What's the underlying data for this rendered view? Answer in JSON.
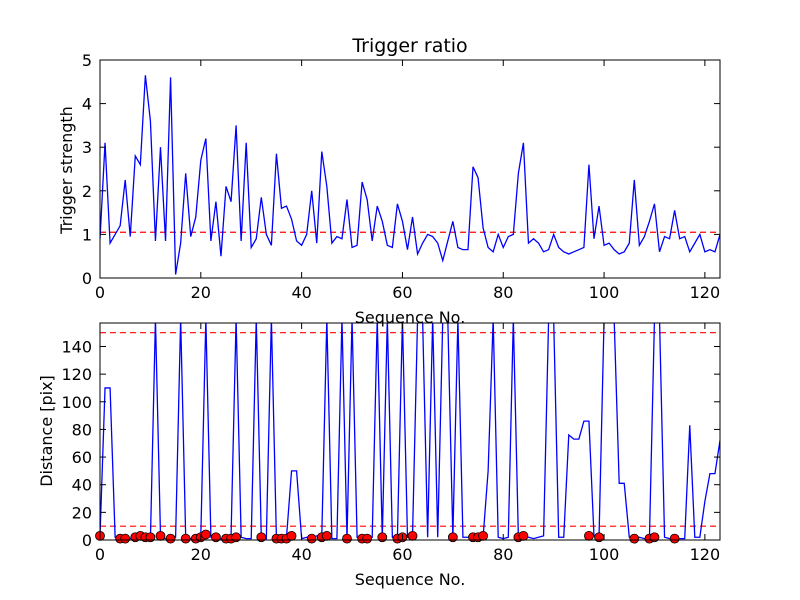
{
  "figure": {
    "title": "Trigger ratio"
  },
  "colors": {
    "line": "#0000ff",
    "threshold": "#ff0000",
    "marker": "#ff0000"
  },
  "chart_data": [
    {
      "type": "line",
      "title": "Trigger ratio",
      "xlabel": "Sequence No.",
      "ylabel": "Trigger strength",
      "xlim": [
        0,
        123
      ],
      "ylim": [
        0,
        5
      ],
      "xticks": [
        0,
        20,
        40,
        60,
        80,
        100,
        120
      ],
      "xtick_labels": [
        "0",
        "20",
        "40",
        "60",
        "80",
        "100",
        "120"
      ],
      "yticks": [
        0,
        1,
        2,
        3,
        4,
        5
      ],
      "ytick_labels": [
        "0",
        "1",
        "2",
        "3",
        "4",
        "5"
      ],
      "grid": false,
      "threshold": 1.05,
      "series": [
        {
          "x": [
            0,
            1,
            2,
            3,
            4,
            5,
            6,
            7,
            8,
            9,
            10,
            11,
            12,
            13,
            14,
            15,
            16,
            17,
            18,
            19,
            20,
            21,
            22,
            23,
            24,
            25,
            26,
            27,
            28,
            29,
            30,
            31,
            32,
            33,
            34,
            35,
            36,
            37,
            38,
            39,
            40,
            41,
            42,
            43,
            44,
            45,
            46,
            47,
            48,
            49,
            50,
            51,
            52,
            53,
            54,
            55,
            56,
            57,
            58,
            59,
            60,
            61,
            62,
            63,
            64,
            65,
            66,
            67,
            68,
            69,
            70,
            71,
            72,
            73,
            74,
            75,
            76,
            77,
            78,
            79,
            80,
            81,
            82,
            83,
            84,
            85,
            86,
            87,
            88,
            89,
            90,
            91,
            92,
            93,
            94,
            95,
            96,
            97,
            98,
            99,
            100,
            101,
            102,
            103,
            104,
            105,
            106,
            107,
            108,
            109,
            110,
            111,
            112,
            113,
            114,
            115,
            116,
            117,
            118,
            119,
            120,
            121,
            122,
            123
          ],
          "values": [
            0.9,
            3.1,
            0.8,
            1.0,
            1.2,
            2.25,
            0.95,
            2.8,
            2.6,
            4.65,
            3.6,
            0.85,
            3.0,
            0.85,
            4.6,
            0.08,
            0.8,
            2.4,
            0.95,
            1.4,
            2.7,
            3.2,
            0.85,
            1.75,
            0.5,
            2.1,
            1.75,
            3.5,
            0.85,
            3.1,
            0.7,
            0.9,
            1.85,
            1.0,
            0.75,
            2.85,
            1.6,
            1.65,
            1.35,
            0.85,
            0.75,
            1.0,
            2.0,
            0.8,
            2.9,
            2.1,
            0.8,
            0.95,
            0.9,
            1.8,
            0.7,
            0.75,
            2.2,
            1.8,
            0.85,
            1.65,
            1.3,
            0.75,
            0.7,
            1.7,
            1.3,
            0.65,
            1.4,
            0.55,
            0.8,
            1.0,
            0.95,
            0.8,
            0.4,
            0.85,
            1.3,
            0.7,
            0.65,
            0.65,
            2.55,
            2.3,
            1.15,
            0.7,
            0.6,
            1.0,
            0.7,
            0.95,
            1.0,
            2.4,
            3.1,
            0.8,
            0.9,
            0.8,
            0.6,
            0.65,
            1.0,
            0.7,
            0.6,
            0.55,
            0.6,
            0.65,
            0.7,
            2.6,
            0.9,
            1.65,
            0.75,
            0.8,
            0.65,
            0.55,
            0.6,
            0.8,
            2.25,
            0.75,
            0.95,
            1.3,
            1.7,
            0.6,
            0.95,
            0.9,
            1.55,
            0.9,
            0.95,
            0.6,
            0.8,
            1.0,
            0.6,
            0.65,
            0.6,
            1.0
          ]
        }
      ]
    },
    {
      "type": "line",
      "title": "",
      "xlabel": "Sequence No.",
      "ylabel": "Distance [pix]",
      "xlim": [
        0,
        123
      ],
      "ylim": [
        0,
        157
      ],
      "xticks": [
        0,
        20,
        40,
        60,
        80,
        100,
        120
      ],
      "xtick_labels": [
        "0",
        "20",
        "40",
        "60",
        "80",
        "100",
        "120"
      ],
      "yticks": [
        0,
        20,
        40,
        60,
        80,
        100,
        120,
        140
      ],
      "ytick_labels": [
        "0",
        "20",
        "40",
        "60",
        "80",
        "100",
        "120",
        "140"
      ],
      "grid": false,
      "thresholds": [
        150,
        10
      ],
      "series": [
        {
          "x": [
            0,
            1,
            2,
            3,
            4,
            5,
            6,
            7,
            8,
            9,
            10,
            11,
            12,
            13,
            14,
            15,
            16,
            17,
            18,
            19,
            20,
            21,
            22,
            23,
            24,
            25,
            26,
            27,
            28,
            29,
            30,
            31,
            32,
            33,
            34,
            35,
            36,
            37,
            38,
            39,
            40,
            41,
            42,
            43,
            44,
            45,
            46,
            47,
            48,
            49,
            50,
            51,
            52,
            53,
            54,
            55,
            56,
            57,
            58,
            59,
            60,
            61,
            62,
            63,
            64,
            65,
            66,
            67,
            68,
            69,
            70,
            71,
            72,
            73,
            74,
            75,
            76,
            77,
            78,
            79,
            80,
            81,
            82,
            83,
            84,
            85,
            86,
            87,
            88,
            89,
            90,
            91,
            92,
            93,
            94,
            95,
            96,
            97,
            98,
            99,
            100,
            101,
            102,
            103,
            104,
            105,
            106,
            107,
            108,
            109,
            110,
            111,
            112,
            113,
            114,
            115,
            116,
            117,
            118,
            119,
            120,
            121,
            122,
            123
          ],
          "values": [
            3,
            110,
            110,
            2,
            1,
            2,
            1,
            2,
            3,
            1,
            0,
            160,
            3,
            1,
            0,
            2,
            160,
            2,
            1,
            0,
            3,
            160,
            2,
            1,
            1,
            0,
            3,
            160,
            2,
            1,
            1,
            160,
            2,
            1,
            160,
            1,
            1,
            2,
            50,
            50,
            1,
            2,
            1,
            3,
            3,
            160,
            1,
            1,
            160,
            1,
            160,
            2,
            2,
            1,
            2,
            160,
            1,
            160,
            2,
            1,
            160,
            2,
            3,
            160,
            160,
            2,
            160,
            2,
            160,
            160,
            2,
            160,
            2,
            2,
            3,
            2,
            2,
            50,
            160,
            2,
            1,
            2,
            160,
            2,
            3,
            2,
            1,
            2,
            3,
            160,
            160,
            2,
            2,
            76,
            73,
            73,
            86,
            86,
            3,
            2,
            160,
            160,
            160,
            41,
            41,
            2,
            1,
            2,
            1,
            1,
            160,
            160,
            2,
            1,
            2,
            1,
            1,
            83,
            2,
            2,
            28,
            48,
            48,
            72
          ]
        }
      ],
      "markers": {
        "x": [
          0,
          4,
          5,
          7,
          8,
          9,
          10,
          12,
          14,
          17,
          19,
          20,
          21,
          23,
          25,
          26,
          27,
          32,
          35,
          36,
          37,
          38,
          42,
          44,
          45,
          49,
          52,
          53,
          56,
          59,
          60,
          62,
          70,
          74,
          75,
          76,
          83,
          84,
          97,
          99,
          106,
          109,
          110,
          114
        ],
        "values": [
          3,
          1,
          1,
          2,
          3,
          2,
          2,
          3,
          1,
          1,
          1,
          2,
          4,
          2,
          1,
          1,
          2,
          2,
          1,
          1,
          1,
          3,
          1,
          2,
          3,
          1,
          1,
          1,
          2,
          1,
          2,
          3,
          2,
          2,
          2,
          3,
          2,
          3,
          3,
          2,
          1,
          1,
          2,
          1
        ]
      }
    }
  ]
}
